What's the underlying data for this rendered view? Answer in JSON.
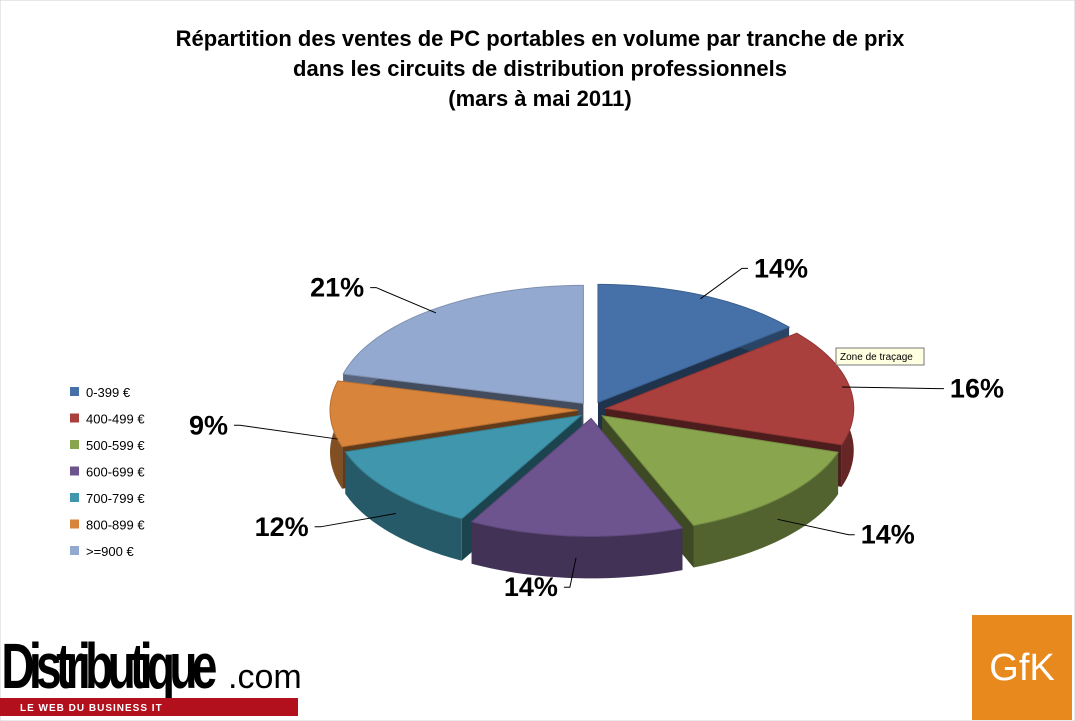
{
  "chart_data": {
    "type": "pie",
    "title": [
      "Répartition des ventes de PC portables en volume par tranche de prix",
      "dans les circuits de distribution professionnels",
      "(mars à mai 2011)"
    ],
    "categories": [
      "0-399 €",
      "400-499 €",
      "500-599 €",
      "600-699 €",
      "700-799 €",
      "800-899 €",
      ">=900 €"
    ],
    "values": [
      14,
      16,
      14,
      14,
      12,
      9,
      21
    ],
    "value_labels": [
      "14%",
      "16%",
      "14%",
      "14%",
      "12%",
      "9%",
      "21%"
    ],
    "colors": [
      "#4571a8",
      "#a9403e",
      "#89a54e",
      "#6e548f",
      "#3f96ad",
      "#d9843b",
      "#94a9cf"
    ],
    "legend": "left"
  },
  "tooltip": "Zone de traçage",
  "logos": {
    "left": "Distributique",
    "left_suffix": ".com",
    "left_tagline": "LE WEB DU BUSINESS IT",
    "right": "GfK"
  }
}
